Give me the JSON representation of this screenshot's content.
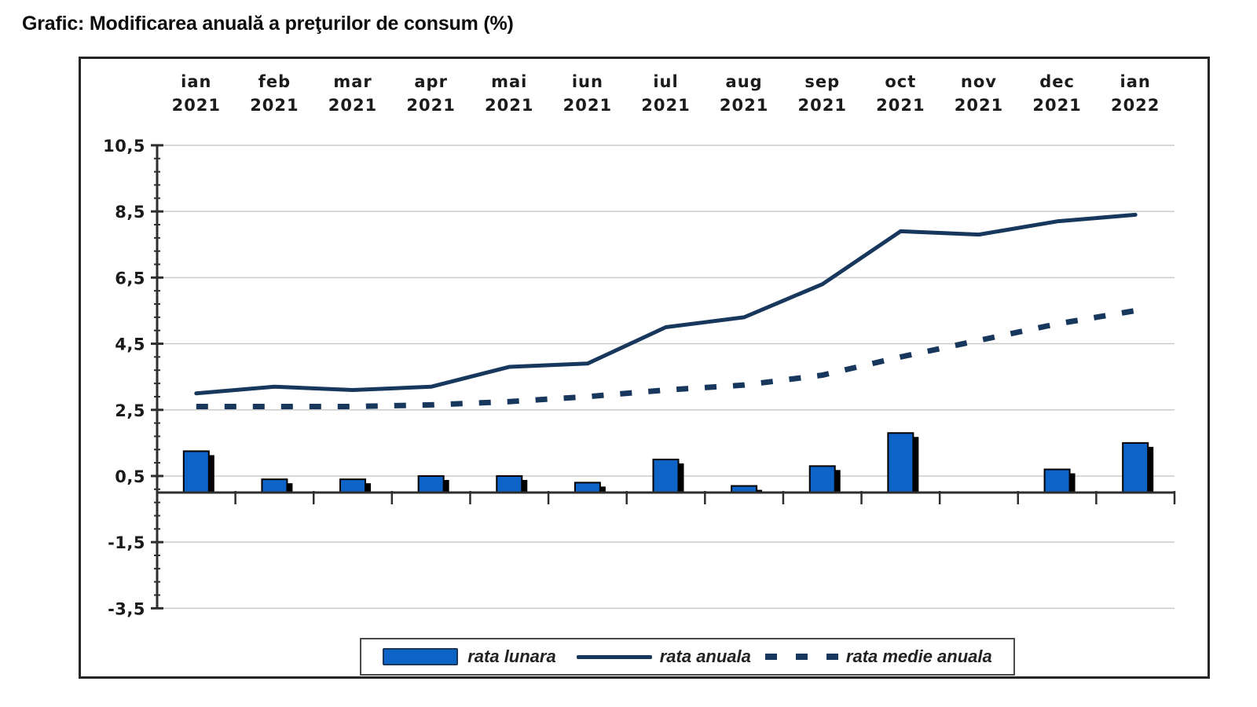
{
  "title": "Grafic: Modificarea anuală a preţurilor de consum (%)",
  "chart_data": {
    "type": "combo-bar-line",
    "categories": [
      {
        "month": "ian",
        "year": "2021"
      },
      {
        "month": "feb",
        "year": "2021"
      },
      {
        "month": "mar",
        "year": "2021"
      },
      {
        "month": "apr",
        "year": "2021"
      },
      {
        "month": "mai",
        "year": "2021"
      },
      {
        "month": "iun",
        "year": "2021"
      },
      {
        "month": "iul",
        "year": "2021"
      },
      {
        "month": "aug",
        "year": "2021"
      },
      {
        "month": "sep",
        "year": "2021"
      },
      {
        "month": "oct",
        "year": "2021"
      },
      {
        "month": "nov",
        "year": "2021"
      },
      {
        "month": "dec",
        "year": "2021"
      },
      {
        "month": "ian",
        "year": "2022"
      }
    ],
    "series": [
      {
        "name": "rata lunara",
        "type": "bar",
        "color": "#0d63c6",
        "values": [
          1.25,
          0.4,
          0.4,
          0.5,
          0.5,
          0.3,
          1.0,
          0.2,
          0.8,
          1.8,
          0,
          0.7,
          1.5
        ]
      },
      {
        "name": "rata anuala",
        "type": "line",
        "style": "solid",
        "color": "#17375d",
        "values": [
          3.0,
          3.2,
          3.1,
          3.2,
          3.8,
          3.9,
          5.0,
          5.3,
          6.3,
          7.9,
          7.8,
          8.2,
          8.4
        ]
      },
      {
        "name": "rata medie anuala",
        "type": "line",
        "style": "dashed",
        "color": "#17375d",
        "values": [
          2.6,
          2.6,
          2.6,
          2.65,
          2.75,
          2.9,
          3.1,
          3.25,
          3.55,
          4.1,
          4.6,
          5.1,
          5.5
        ]
      }
    ],
    "y_axis": {
      "tick_labels": [
        "10,5",
        "8,5",
        "6,5",
        "4,5",
        "2,5",
        "0,5",
        "-1,5",
        "-3,5"
      ],
      "tick_values": [
        10.5,
        8.5,
        6.5,
        4.5,
        2.5,
        0.5,
        -1.5,
        -3.5
      ],
      "minor_step": 0.4,
      "ylim": [
        -3.5,
        10.5
      ]
    },
    "grid": true,
    "legend_position": "bottom-center"
  },
  "colors": {
    "bar_fill": "#0d63c6",
    "bar_border": "#000000",
    "bar_shadow": "#000000",
    "line_navy": "#17375d",
    "gridline": "#cbcbcb",
    "axis": "#2e2e2e",
    "text": "#1b1b1b",
    "frame_border": "#262626"
  }
}
